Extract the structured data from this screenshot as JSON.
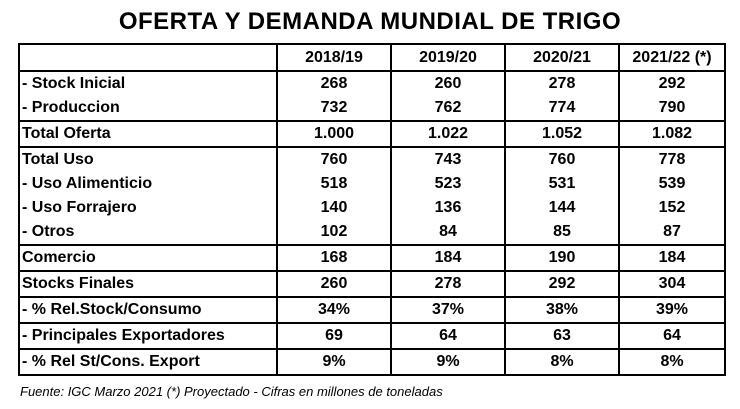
{
  "title": "OFERTA Y DEMANDA MUNDIAL DE TRIGO",
  "table": {
    "headers": [
      "",
      "2018/19",
      "2019/20",
      "2020/21",
      "2021/22 (*)"
    ],
    "rows": [
      {
        "label": " - Stock Inicial",
        "values": [
          "268",
          "260",
          "278",
          "292"
        ]
      },
      {
        "label": " - Produccion",
        "values": [
          "732",
          "762",
          "774",
          "790"
        ]
      },
      {
        "label": "Total Oferta",
        "values": [
          "1.000",
          "1.022",
          "1.052",
          "1.082"
        ]
      },
      {
        "label": "Total Uso",
        "values": [
          "760",
          "743",
          "760",
          "778"
        ]
      },
      {
        "label": " - Uso Alimenticio",
        "values": [
          "518",
          "523",
          "531",
          "539"
        ]
      },
      {
        "label": " - Uso Forrajero",
        "values": [
          "140",
          "136",
          "144",
          "152"
        ]
      },
      {
        "label": " - Otros",
        "values": [
          "102",
          "84",
          "85",
          "87"
        ]
      },
      {
        "label": "Comercio",
        "values": [
          "168",
          "184",
          "190",
          "184"
        ]
      },
      {
        "label": "Stocks Finales",
        "values": [
          "260",
          "278",
          "292",
          "304"
        ]
      },
      {
        "label": " - % Rel.Stock/Consumo",
        "values": [
          "34%",
          "37%",
          "38%",
          "39%"
        ]
      },
      {
        "label": " - Principales Exportadores",
        "values": [
          "69",
          "64",
          "63",
          "64"
        ]
      },
      {
        "label": " - % Rel St/Cons. Export",
        "values": [
          "9%",
          "9%",
          "8%",
          "8%"
        ]
      }
    ]
  },
  "footer": "Fuente: IGC Marzo 2021 (*) Proyectado - Cifras en millones de toneladas"
}
